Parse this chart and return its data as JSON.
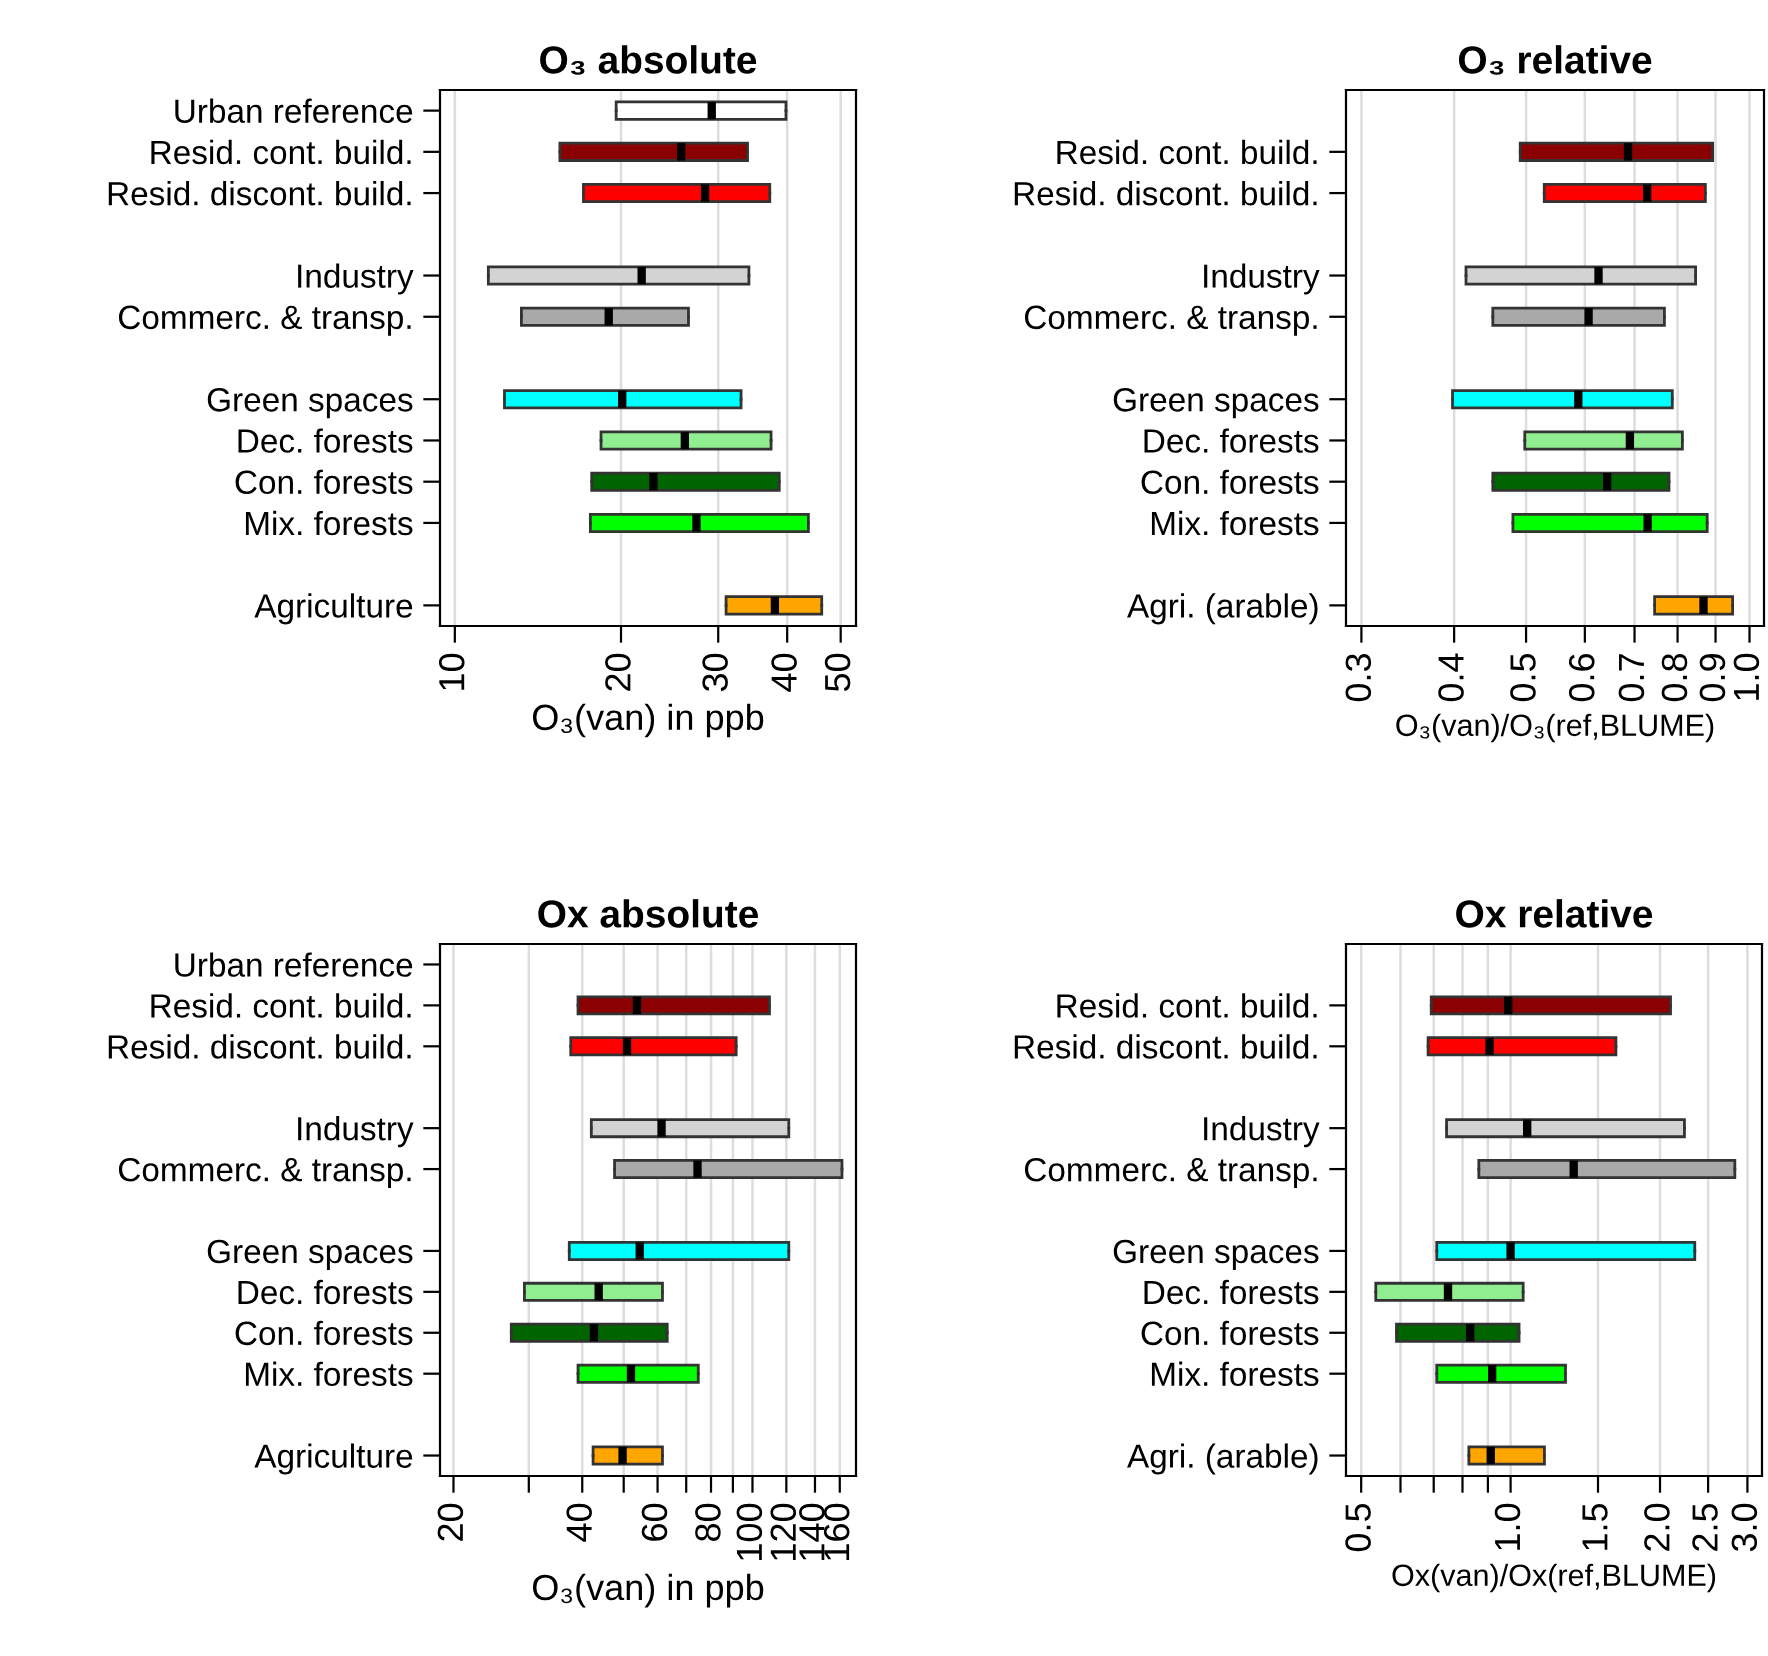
{
  "chart_data": [
    {
      "type": "box",
      "orientation": "horizontal",
      "title": "O₃ absolute",
      "xlabel": "O₃(van) in ppb",
      "log": "x",
      "grid": "x",
      "categories": [
        "Urban reference",
        "Resid. cont. build.",
        "Resid. discont. build.",
        null,
        "Industry",
        "Commerc. & transp.",
        null,
        "Green spaces",
        "Dec. forests",
        "Con. forests",
        "Mix. forests",
        null,
        "Agriculture"
      ],
      "colors": [
        "#ffffff",
        "#8b0000",
        "#ff0000",
        null,
        "#d3d3d3",
        "#a9a9a9",
        null,
        "#00ffff",
        "#90ee90",
        "#006400",
        "#00ff00",
        null,
        "#ffa500"
      ],
      "boxes": [
        {
          "low": 19.6,
          "q1": 19.6,
          "median": 29.2,
          "q3": 39.8,
          "high": 39.8
        },
        {
          "low": 15.5,
          "q1": 15.5,
          "median": 25.7,
          "q3": 33.9,
          "high": 33.9
        },
        {
          "low": 17.1,
          "q1": 17.1,
          "median": 28.4,
          "q3": 37.2,
          "high": 37.2
        },
        null,
        {
          "low": 11.5,
          "q1": 11.5,
          "median": 21.8,
          "q3": 34.1,
          "high": 34.1
        },
        {
          "low": 13.2,
          "q1": 13.2,
          "median": 19.0,
          "q3": 26.5,
          "high": 26.5
        },
        null,
        {
          "low": 12.3,
          "q1": 12.3,
          "median": 20.1,
          "q3": 33.0,
          "high": 33.0
        },
        {
          "low": 18.4,
          "q1": 18.4,
          "median": 26.1,
          "q3": 37.4,
          "high": 37.4
        },
        {
          "low": 17.7,
          "q1": 17.7,
          "median": 22.9,
          "q3": 38.7,
          "high": 38.7
        },
        {
          "low": 17.6,
          "q1": 17.6,
          "median": 27.4,
          "q3": 43.7,
          "high": 43.7
        },
        null,
        {
          "low": 31.0,
          "q1": 31.0,
          "median": 38.0,
          "q3": 46.2,
          "high": 46.2
        }
      ],
      "xlim": [
        9.4,
        53.3
      ],
      "xticks": [
        10,
        20,
        30,
        40,
        50
      ]
    },
    {
      "type": "box",
      "orientation": "horizontal",
      "title": "O₃ relative",
      "xlabel": "O₃(van)/O₃(ref,BLUME)",
      "log": "x",
      "grid": "x",
      "categories": [
        null,
        "Resid. cont. build.",
        "Resid. discont. build.",
        null,
        "Industry",
        "Commerc. & transp.",
        null,
        "Green spaces",
        "Dec. forests",
        "Con. forests",
        "Mix. forests",
        null,
        "Agri. (arable)"
      ],
      "colors": [
        null,
        "#8b0000",
        "#ff0000",
        null,
        "#d3d3d3",
        "#a9a9a9",
        null,
        "#00ffff",
        "#90ee90",
        "#006400",
        "#00ff00",
        null,
        "#ffa500"
      ],
      "boxes": [
        null,
        {
          "low": 0.491,
          "q1": 0.491,
          "median": 0.686,
          "q3": 0.892,
          "high": 0.892
        },
        {
          "low": 0.529,
          "q1": 0.529,
          "median": 0.728,
          "q3": 0.872,
          "high": 0.872
        },
        null,
        {
          "low": 0.415,
          "q1": 0.415,
          "median": 0.626,
          "q3": 0.846,
          "high": 0.846
        },
        {
          "low": 0.451,
          "q1": 0.451,
          "median": 0.607,
          "q3": 0.768,
          "high": 0.768
        },
        null,
        {
          "low": 0.398,
          "q1": 0.398,
          "median": 0.588,
          "q3": 0.787,
          "high": 0.787
        },
        {
          "low": 0.498,
          "q1": 0.498,
          "median": 0.69,
          "q3": 0.812,
          "high": 0.812
        },
        {
          "low": 0.451,
          "q1": 0.451,
          "median": 0.643,
          "q3": 0.779,
          "high": 0.779
        },
        {
          "low": 0.48,
          "q1": 0.48,
          "median": 0.729,
          "q3": 0.877,
          "high": 0.877
        },
        null,
        {
          "low": 0.745,
          "q1": 0.745,
          "median": 0.867,
          "q3": 0.949,
          "high": 0.949
        }
      ],
      "xlim": [
        0.286,
        1.046
      ],
      "xticks": [
        0.3,
        0.4,
        0.5,
        0.6,
        0.7,
        0.8,
        0.9,
        {
          "value": 1,
          "label": "1.0"
        }
      ]
    },
    {
      "type": "box",
      "orientation": "horizontal",
      "title": "Ox absolute",
      "xlabel": "O₃(van) in ppb",
      "log": "x",
      "grid": "x",
      "categories": [
        "Urban reference",
        "Resid. cont. build.",
        "Resid. discont. build.",
        null,
        "Industry",
        "Commerc. & transp.",
        null,
        "Green spaces",
        "Dec. forests",
        "Con. forests",
        "Mix. forests",
        null,
        "Agriculture"
      ],
      "colors": [
        null,
        "#8b0000",
        "#ff0000",
        null,
        "#d3d3d3",
        "#a9a9a9",
        null,
        "#00ffff",
        "#90ee90",
        "#006400",
        "#00ff00",
        null,
        "#ffa500"
      ],
      "boxes": [
        null,
        {
          "low": 39.1,
          "q1": 39.1,
          "median": 53.7,
          "q3": 109.6,
          "high": 109.6
        },
        {
          "low": 37.6,
          "q1": 37.6,
          "median": 50.9,
          "q3": 91.6,
          "high": 91.6
        },
        null,
        {
          "low": 42.0,
          "q1": 42.0,
          "median": 61.3,
          "q3": 121.6,
          "high": 121.6
        },
        {
          "low": 47.6,
          "q1": 47.6,
          "median": 74.4,
          "q3": 161.9,
          "high": 161.9
        },
        null,
        {
          "low": 37.3,
          "q1": 37.3,
          "median": 54.5,
          "q3": 121.6,
          "high": 121.6
        },
        {
          "low": 29.3,
          "q1": 29.3,
          "median": 43.7,
          "q3": 61.6,
          "high": 61.6
        },
        {
          "low": 27.3,
          "q1": 27.3,
          "median": 42.6,
          "q3": 63.2,
          "high": 63.2
        },
        {
          "low": 39.1,
          "q1": 39.1,
          "median": 52.0,
          "q3": 74.7,
          "high": 74.7
        },
        null,
        {
          "low": 42.4,
          "q1": 42.4,
          "median": 49.7,
          "q3": 61.6,
          "high": 61.6
        }
      ],
      "xlim": [
        18.6,
        174.6
      ],
      "xticks": [
        20,
        {
          "value": 30,
          "label": null
        },
        40,
        {
          "value": 50,
          "label": null
        },
        60,
        {
          "value": 70,
          "label": null
        },
        80,
        {
          "value": 90,
          "label": null
        },
        100,
        120,
        140,
        160
      ]
    },
    {
      "type": "box",
      "orientation": "horizontal",
      "title": "Ox relative",
      "xlabel": "Ox(van)/Ox(ref,BLUME)",
      "log": "x",
      "grid": "x",
      "categories": [
        null,
        "Resid. cont. build.",
        "Resid. discont. build.",
        null,
        "Industry",
        "Commerc. & transp.",
        null,
        "Green spaces",
        "Dec. forests",
        "Con. forests",
        "Mix. forests",
        null,
        "Agri. (arable)"
      ],
      "colors": [
        null,
        "#8b0000",
        "#ff0000",
        null,
        "#d3d3d3",
        "#a9a9a9",
        null,
        "#00ffff",
        "#90ee90",
        "#006400",
        "#00ff00",
        null,
        "#ffa500"
      ],
      "boxes": [
        null,
        {
          "low": 0.692,
          "q1": 0.692,
          "median": 0.989,
          "q3": 2.1,
          "high": 2.1
        },
        {
          "low": 0.682,
          "q1": 0.682,
          "median": 0.907,
          "q3": 1.63,
          "high": 1.63
        },
        null,
        {
          "low": 0.743,
          "q1": 0.743,
          "median": 1.08,
          "q3": 2.24,
          "high": 2.24
        },
        {
          "low": 0.863,
          "q1": 0.863,
          "median": 1.34,
          "q3": 2.83,
          "high": 2.83
        },
        null,
        {
          "low": 0.71,
          "q1": 0.71,
          "median": 1.0,
          "q3": 2.35,
          "high": 2.35
        },
        {
          "low": 0.535,
          "q1": 0.535,
          "median": 0.748,
          "q3": 1.06,
          "high": 1.06
        },
        {
          "low": 0.589,
          "q1": 0.589,
          "median": 0.829,
          "q3": 1.04,
          "high": 1.04
        },
        {
          "low": 0.71,
          "q1": 0.71,
          "median": 0.918,
          "q3": 1.29,
          "high": 1.29
        },
        null,
        {
          "low": 0.824,
          "q1": 0.824,
          "median": 0.912,
          "q3": 1.17,
          "high": 1.17
        }
      ],
      "xlim": [
        0.466,
        3.21
      ],
      "xticks": [
        0.5,
        {
          "value": 0.6,
          "label": null
        },
        {
          "value": 0.7,
          "label": null
        },
        {
          "value": 0.8,
          "label": null
        },
        {
          "value": 0.9,
          "label": null
        },
        {
          "value": 1,
          "label": "1.0"
        },
        1.5,
        {
          "value": 2,
          "label": "2.0"
        },
        2.5,
        {
          "value": 3,
          "label": "3.0"
        }
      ]
    }
  ]
}
